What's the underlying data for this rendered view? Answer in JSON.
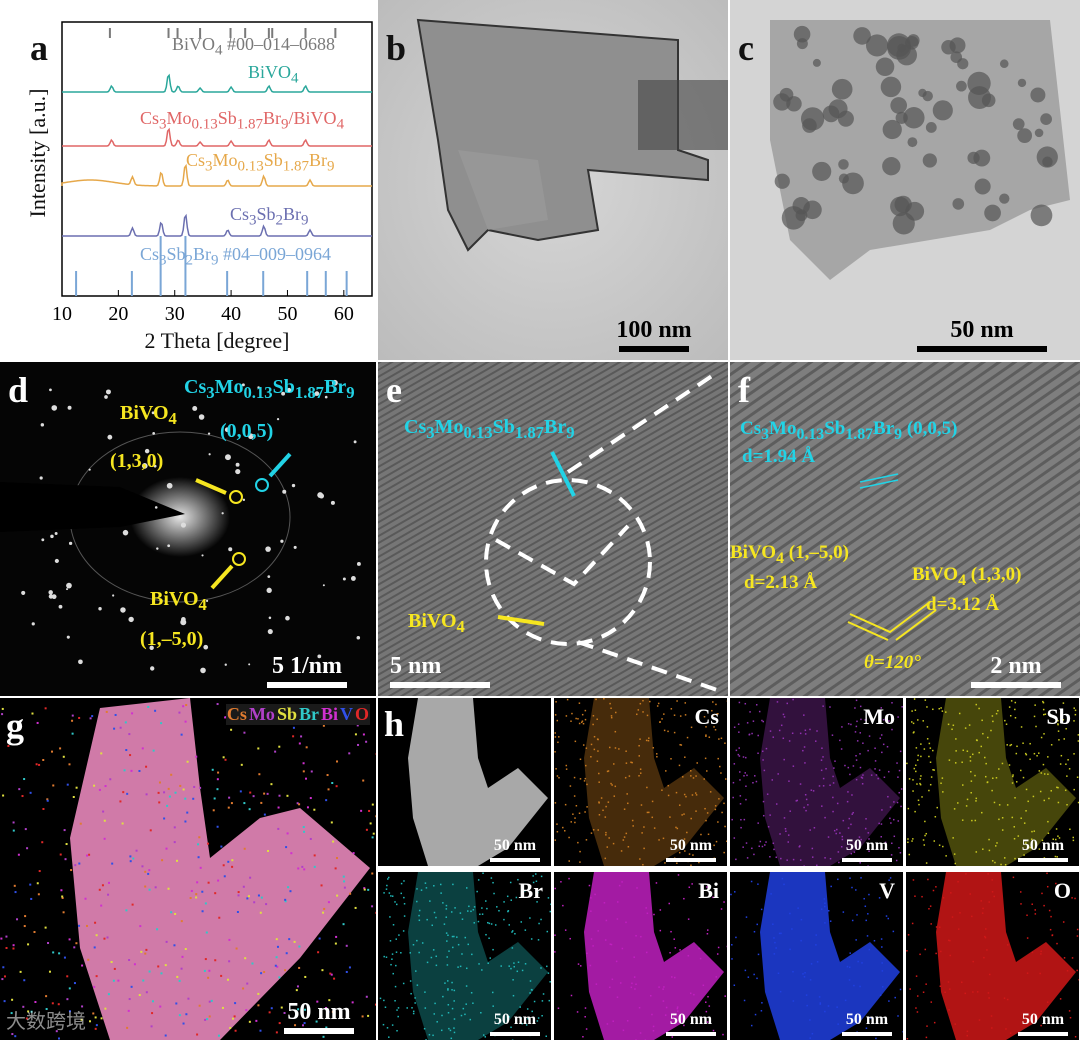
{
  "panels": {
    "a": {
      "label": "a",
      "ylabel": "Intensity [a.u.]",
      "xlabel": "2 Theta [degree]",
      "xticks": [
        "10",
        "20",
        "30",
        "40",
        "50",
        "60"
      ],
      "traces": [
        {
          "name": "BiVO4 #00–014–0688",
          "color": "#7a7a7a"
        },
        {
          "name": "BiVO4",
          "color": "#2aa79b"
        },
        {
          "name": "Cs3Mo0.13Sb1.87Br9/BiVO4",
          "color": "#e06666"
        },
        {
          "name": "Cs3Mo0.13Sb1.87Br9",
          "color": "#e6a84a"
        },
        {
          "name": "Cs3Sb2Br9",
          "color": "#6b6fb0"
        },
        {
          "name": "Cs3Sb2Br9 #04–009–0964",
          "color": "#7aa6d6"
        }
      ]
    },
    "b": {
      "label": "b",
      "scale": "100 nm"
    },
    "c": {
      "label": "c",
      "scale": "50 nm"
    },
    "d": {
      "label": "d",
      "scale": "5 1/nm",
      "tag_cs": "Cs3Mo0.13Sb1.87Br9",
      "tag_005": "(0,0,5)",
      "tag_bivo4_top": "BiVO4",
      "tag_130": "(1,3,0)",
      "tag_bivo4_bottom": "BiVO4",
      "tag_150": "(1,–5,0)"
    },
    "e": {
      "label": "e",
      "scale": "5 nm",
      "tag_cs": "Cs3Mo0.13Sb1.87Br9",
      "tag_bivo4": "BiVO4"
    },
    "f": {
      "label": "f",
      "scale": "2 nm",
      "tag_cs": "Cs3Mo0.13Sb1.87Br9 (0,0,5)",
      "tag_d1": "d=1.94 Å",
      "tag_bivo4_a": "BiVO4 (1,–5,0)",
      "tag_d2": "d=2.13 Å",
      "tag_bivo4_b": "BiVO4 (1,3,0)",
      "tag_d3": "d=3.12 Å",
      "tag_theta": "θ=120°"
    },
    "g": {
      "label": "g",
      "scale": "50 nm",
      "legend": [
        {
          "name": "Cs",
          "color": "#e07b30"
        },
        {
          "name": "Mo",
          "color": "#b040c8"
        },
        {
          "name": "Sb",
          "color": "#e0e040"
        },
        {
          "name": "Br",
          "color": "#30c8c8"
        },
        {
          "name": "Bi",
          "color": "#d030d0"
        },
        {
          "name": "V",
          "color": "#3050e8"
        },
        {
          "name": "O",
          "color": "#e02828"
        }
      ]
    },
    "h": {
      "label": "h",
      "maps": [
        {
          "element": "",
          "scale": "50 nm",
          "color": "#cccccc"
        },
        {
          "element": "Cs",
          "scale": "50 nm",
          "color": "#c87a20"
        },
        {
          "element": "Mo",
          "scale": "50 nm",
          "color": "#9030b0"
        },
        {
          "element": "Sb",
          "scale": "50 nm",
          "color": "#c8c820"
        },
        {
          "element": "Br",
          "scale": "50 nm",
          "color": "#20b8b8"
        },
        {
          "element": "Bi",
          "scale": "50 nm",
          "color": "#c020c0"
        },
        {
          "element": "V",
          "scale": "50 nm",
          "color": "#2040e0"
        },
        {
          "element": "O",
          "scale": "50 nm",
          "color": "#d01818"
        }
      ]
    }
  },
  "watermark": "大数跨境"
}
